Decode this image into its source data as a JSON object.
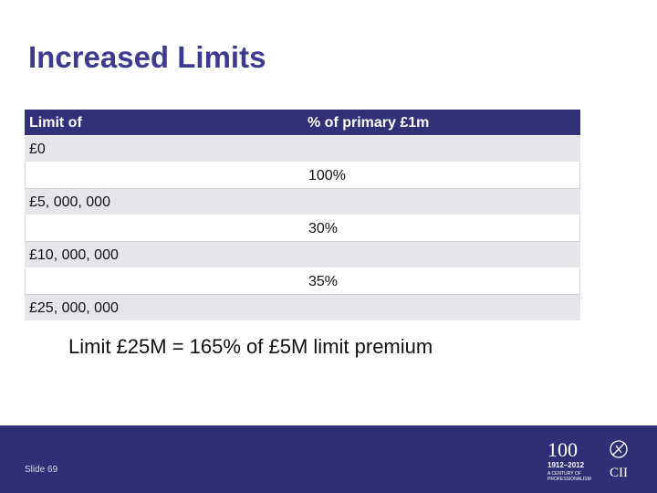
{
  "title": "Increased Limits",
  "table": {
    "headers": [
      "Limit of",
      "% of primary £1m"
    ],
    "rows": [
      [
        "£0",
        ""
      ],
      [
        "",
        "100%"
      ],
      [
        "£5, 000, 000",
        ""
      ],
      [
        "",
        "30%"
      ],
      [
        "£10, 000, 000",
        ""
      ],
      [
        "",
        "35%"
      ],
      [
        "£25, 000, 000",
        ""
      ]
    ]
  },
  "note": "Limit £25M = 165% of £5M limit premium",
  "footer": {
    "slide_label": "Slide 69",
    "logo": {
      "centenary_mark": "100",
      "years": "1912–2012",
      "tagline_1": "A CENTURY OF",
      "tagline_2": "PROFESSIONALISM",
      "org": "CII"
    }
  },
  "colors": {
    "title": "#3b3b8f",
    "header_bg": "#303178",
    "shaded_row": "#e6e6ea",
    "footer_bg": "#2e2f75"
  }
}
